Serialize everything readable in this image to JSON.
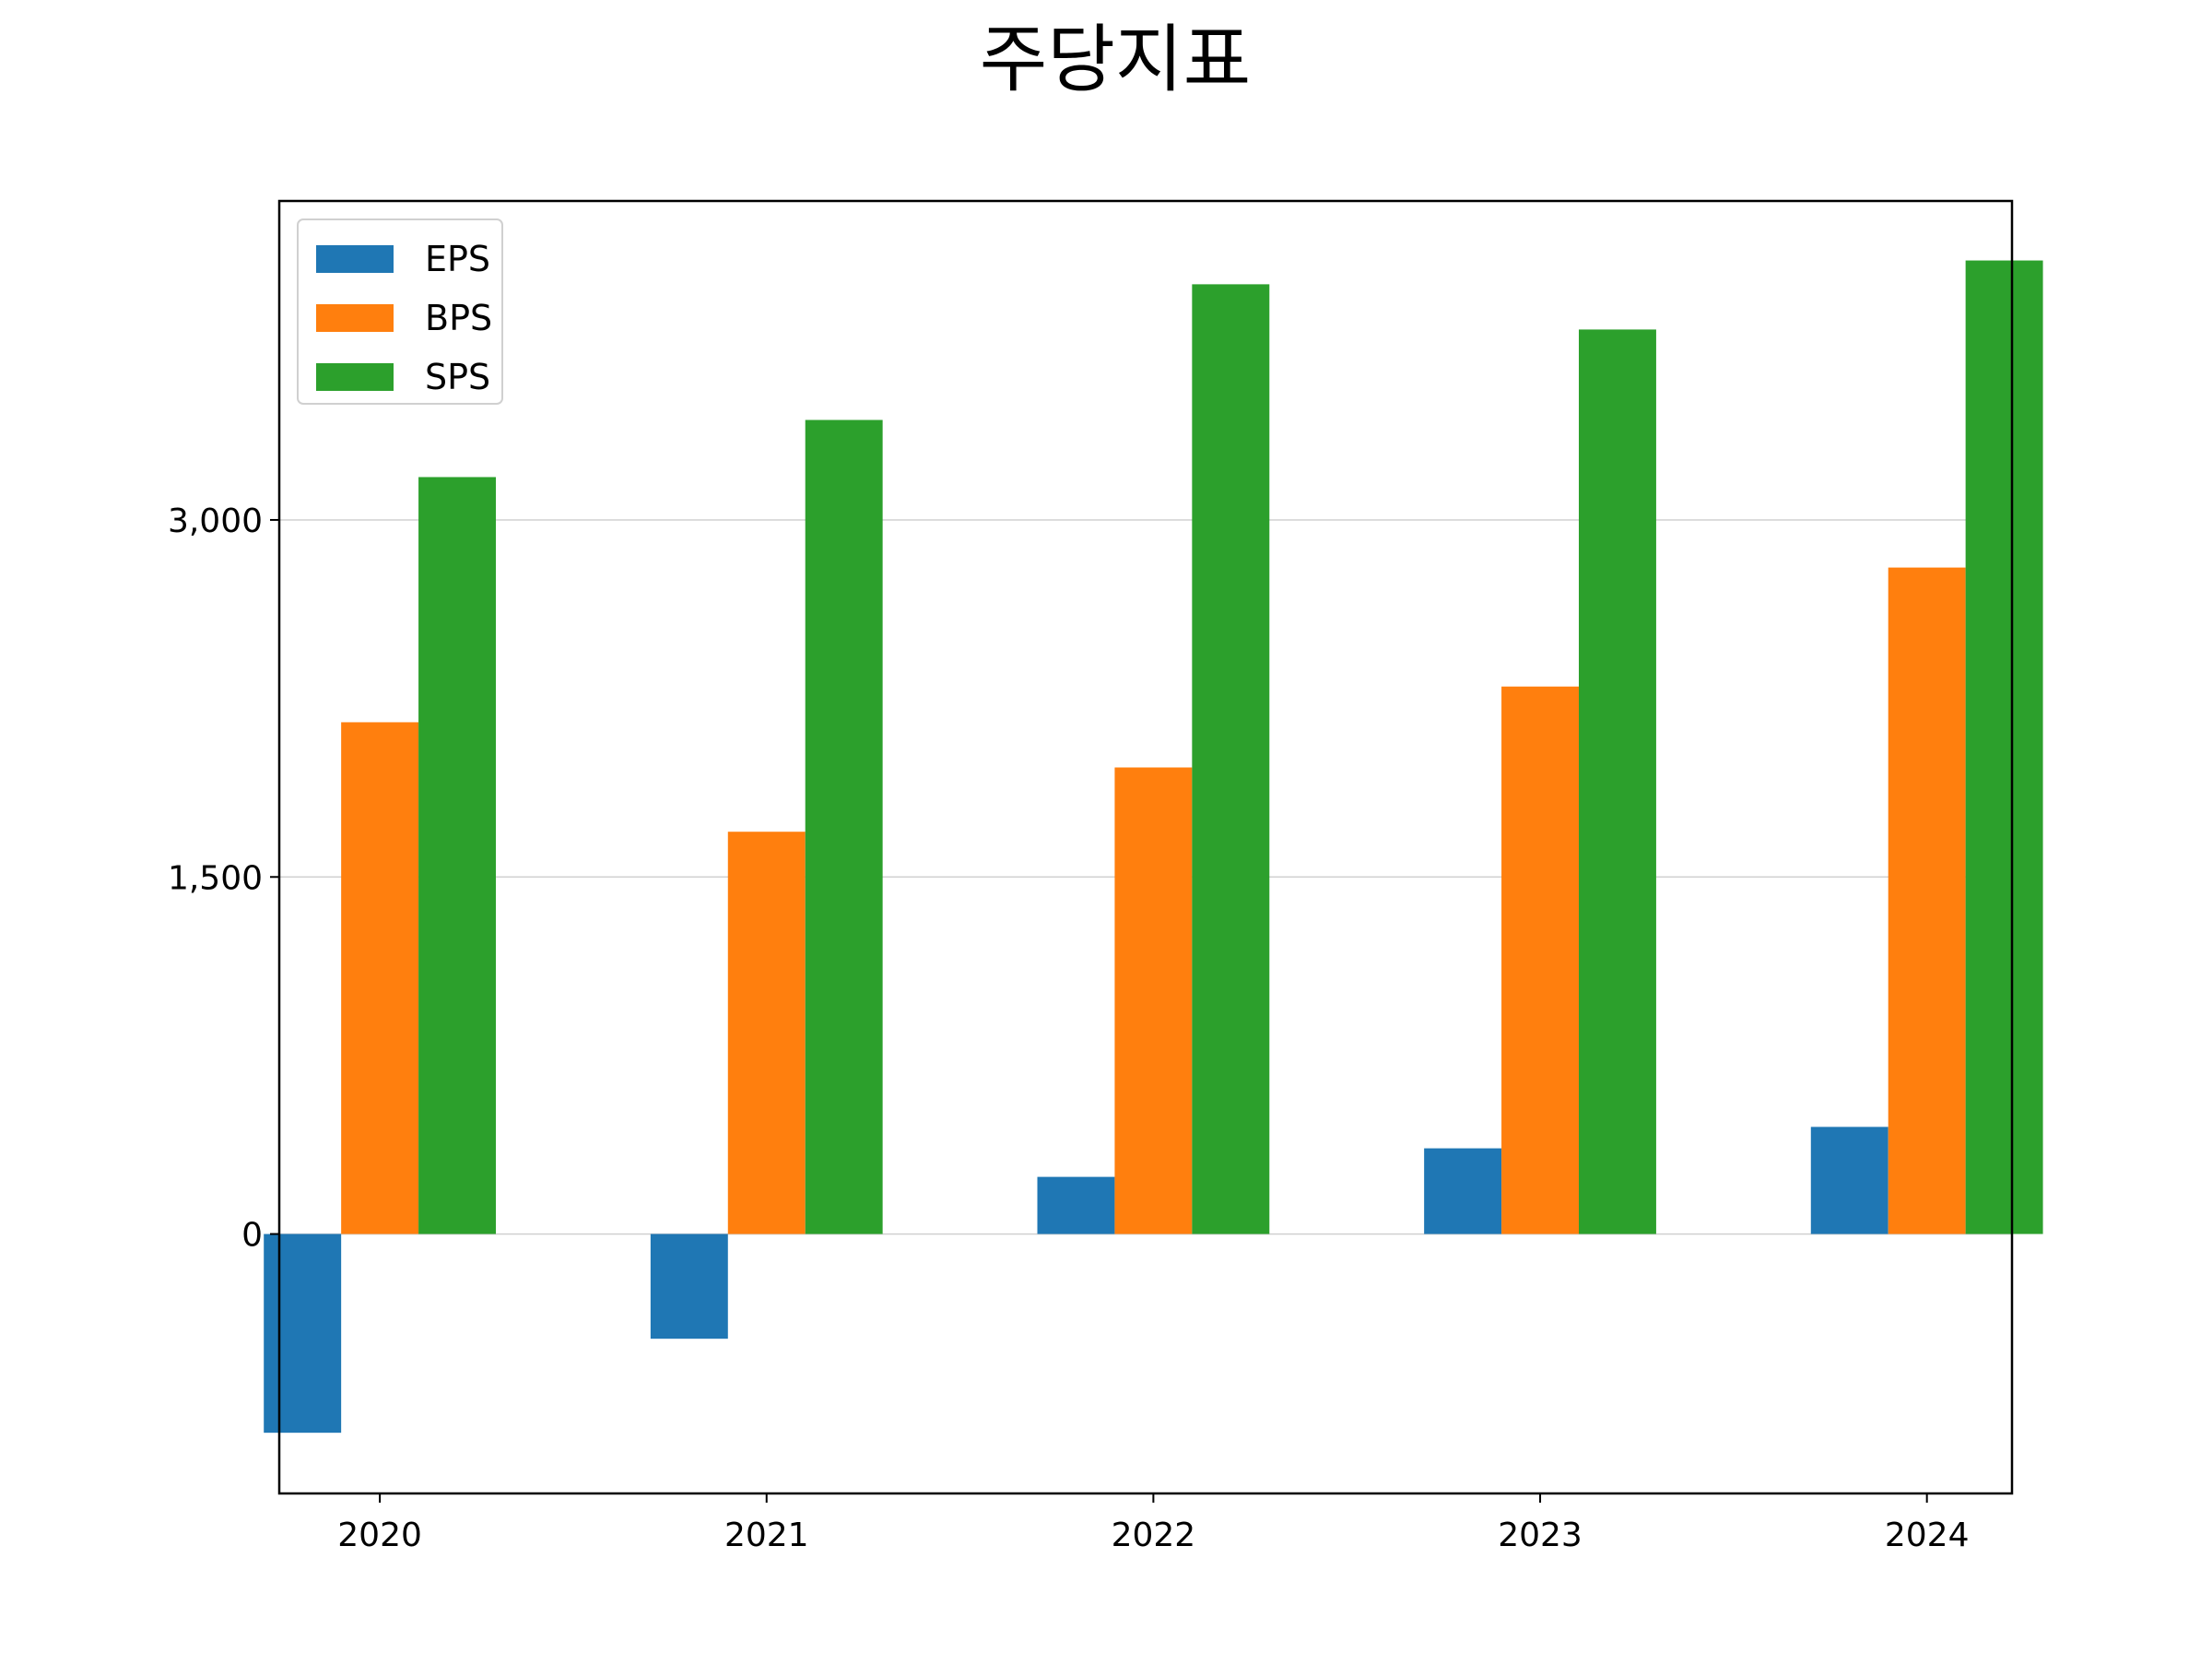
{
  "chart_data": {
    "type": "bar",
    "title": "주당지표",
    "xlabel": "",
    "ylabel": "",
    "categories": [
      "2020",
      "2021",
      "2022",
      "2023",
      "2024"
    ],
    "series": [
      {
        "name": "EPS",
        "color": "#1f77b4",
        "values": [
          -835,
          -440,
          240,
          360,
          450
        ]
      },
      {
        "name": "BPS",
        "color": "#ff7f0e",
        "values": [
          2150,
          1690,
          1960,
          2300,
          2800
        ]
      },
      {
        "name": "SPS",
        "color": "#2ca02c",
        "values": [
          3180,
          3420,
          3990,
          3800,
          4090
        ]
      }
    ],
    "ylim": [
      -1090,
      4340
    ],
    "yticks": [
      {
        "value": 0,
        "label": "0"
      },
      {
        "value": 1500,
        "label": "1,500"
      },
      {
        "value": 3000,
        "label": "3,000"
      }
    ],
    "grid": {
      "y": true,
      "x": false
    },
    "legend": {
      "position": "top-left"
    }
  }
}
